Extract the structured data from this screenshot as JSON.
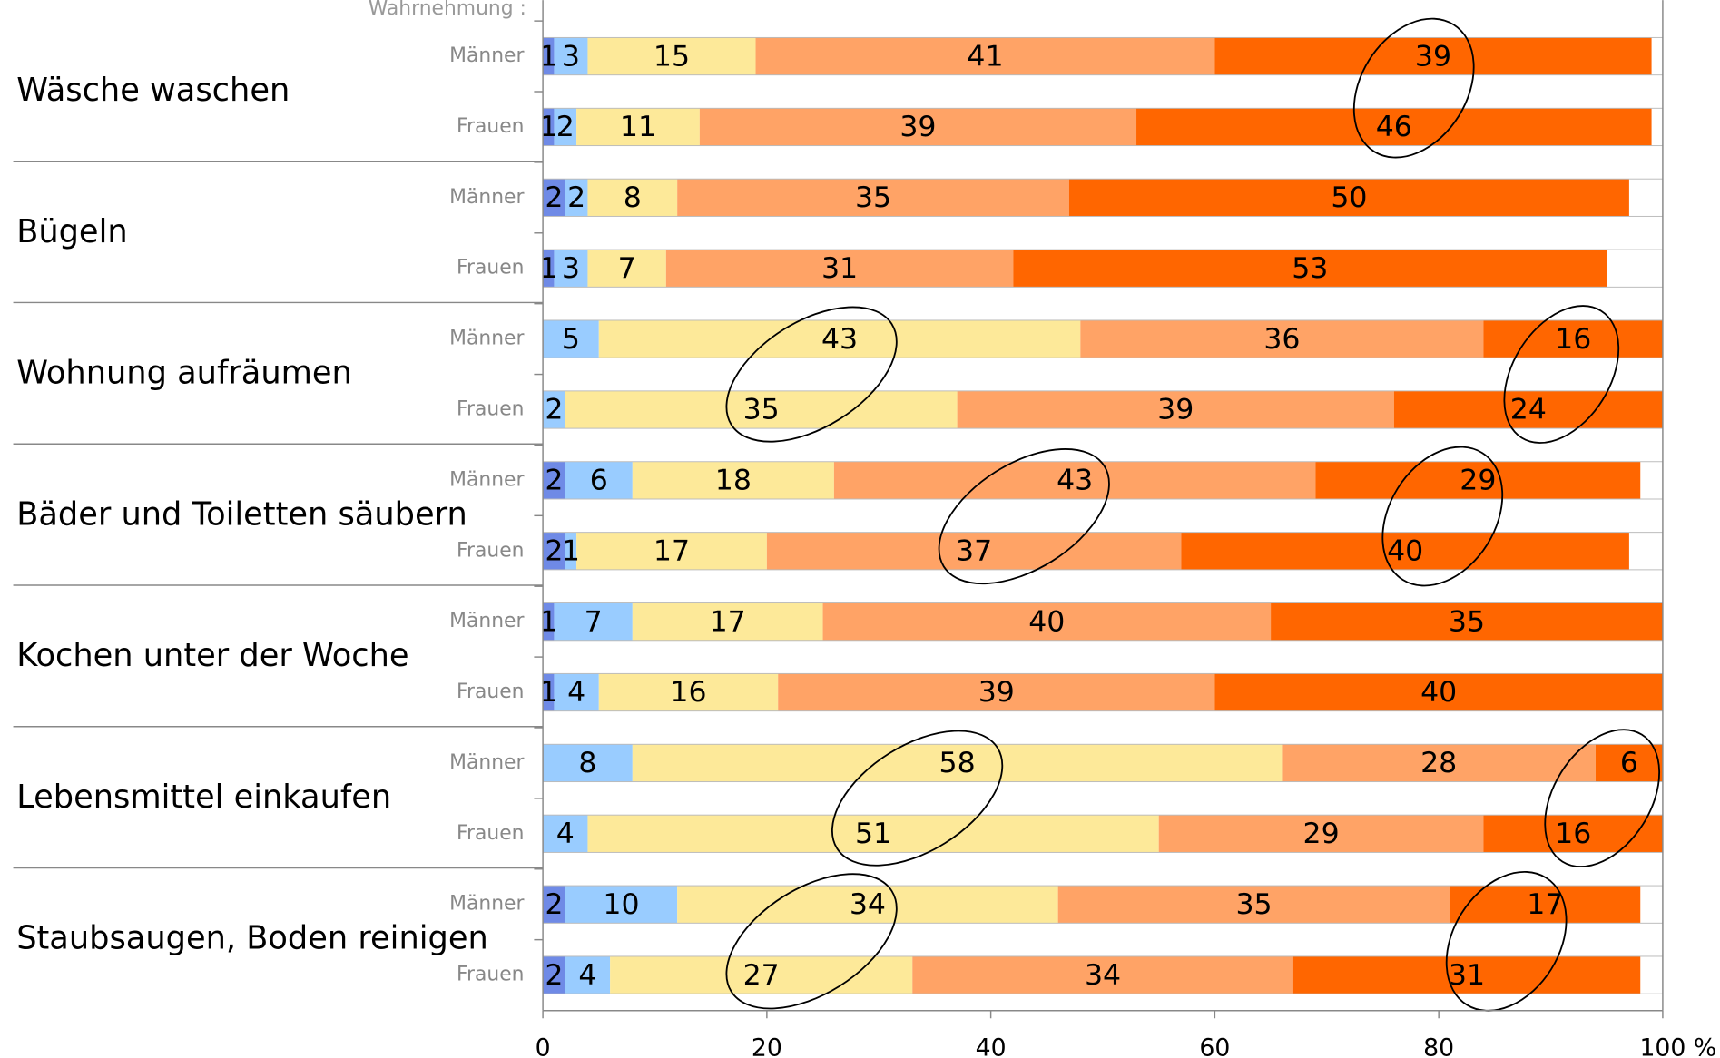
{
  "chart_data": {
    "type": "stacked-barh",
    "header": "Wahrnehmung :",
    "xlim": [
      0,
      100
    ],
    "xticks": [
      0,
      20,
      40,
      60,
      80,
      100
    ],
    "x_unit": "%",
    "series_colors": [
      "#6f8ae6",
      "#99ccff",
      "#fde999",
      "#ffa366",
      "#ff6600"
    ],
    "groups": [
      {
        "label": "Wäsche waschen",
        "rows": [
          {
            "name": "Männer",
            "values": [
              1,
              3,
              15,
              41,
              39
            ]
          },
          {
            "name": "Frauen",
            "values": [
              1,
              2,
              11,
              39,
              46
            ]
          }
        ]
      },
      {
        "label": "Bügeln",
        "rows": [
          {
            "name": "Männer",
            "values": [
              2,
              2,
              8,
              35,
              50
            ]
          },
          {
            "name": "Frauen",
            "values": [
              1,
              3,
              7,
              31,
              53
            ]
          }
        ]
      },
      {
        "label": "Wohnung aufräumen",
        "rows": [
          {
            "name": "Männer",
            "values": [
              null,
              5,
              43,
              36,
              16
            ]
          },
          {
            "name": "Frauen",
            "values": [
              null,
              2,
              35,
              39,
              24
            ]
          }
        ]
      },
      {
        "label": "Bäder und Toiletten säubern",
        "rows": [
          {
            "name": "Männer",
            "values": [
              2,
              6,
              18,
              43,
              29
            ]
          },
          {
            "name": "Frauen",
            "values": [
              2,
              1,
              17,
              37,
              40
            ]
          }
        ]
      },
      {
        "label": "Kochen unter der Woche",
        "rows": [
          {
            "name": "Männer",
            "values": [
              1,
              7,
              17,
              40,
              35
            ]
          },
          {
            "name": "Frauen",
            "values": [
              1,
              4,
              16,
              39,
              40
            ]
          }
        ]
      },
      {
        "label": "Lebensmittel einkaufen",
        "rows": [
          {
            "name": "Männer",
            "values": [
              null,
              8,
              58,
              28,
              6
            ]
          },
          {
            "name": "Frauen",
            "values": [
              null,
              4,
              51,
              29,
              16
            ]
          }
        ]
      },
      {
        "label": "Staubsaugen, Boden reinigen",
        "rows": [
          {
            "name": "Männer",
            "values": [
              2,
              10,
              34,
              35,
              17
            ]
          },
          {
            "name": "Frauen",
            "values": [
              2,
              4,
              27,
              34,
              31
            ]
          }
        ]
      }
    ]
  }
}
